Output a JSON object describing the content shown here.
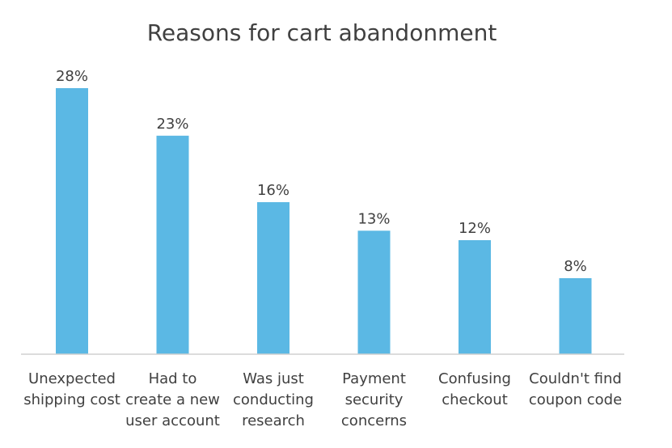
{
  "chart_data": {
    "type": "bar",
    "title": "Reasons for cart abandonment",
    "xlabel": "",
    "ylabel": "",
    "categories": [
      [
        "Unexpected",
        "shipping cost"
      ],
      [
        "Had to",
        "create a new",
        "user account"
      ],
      [
        "Was just",
        "conducting",
        "research"
      ],
      [
        "Payment",
        "security",
        "concerns"
      ],
      [
        "Confusing",
        "checkout"
      ],
      [
        "Couldn't find",
        "coupon code"
      ]
    ],
    "values": [
      28,
      23,
      16,
      13,
      12,
      8
    ],
    "data_labels": [
      "28%",
      "23%",
      "16%",
      "13%",
      "12%",
      "8%"
    ],
    "ylim": [
      0,
      30
    ],
    "grid": false,
    "legend": "none",
    "bar_color": "#5BB8E4",
    "axis_color": "#D0D0D0",
    "text_color": "#404040"
  }
}
